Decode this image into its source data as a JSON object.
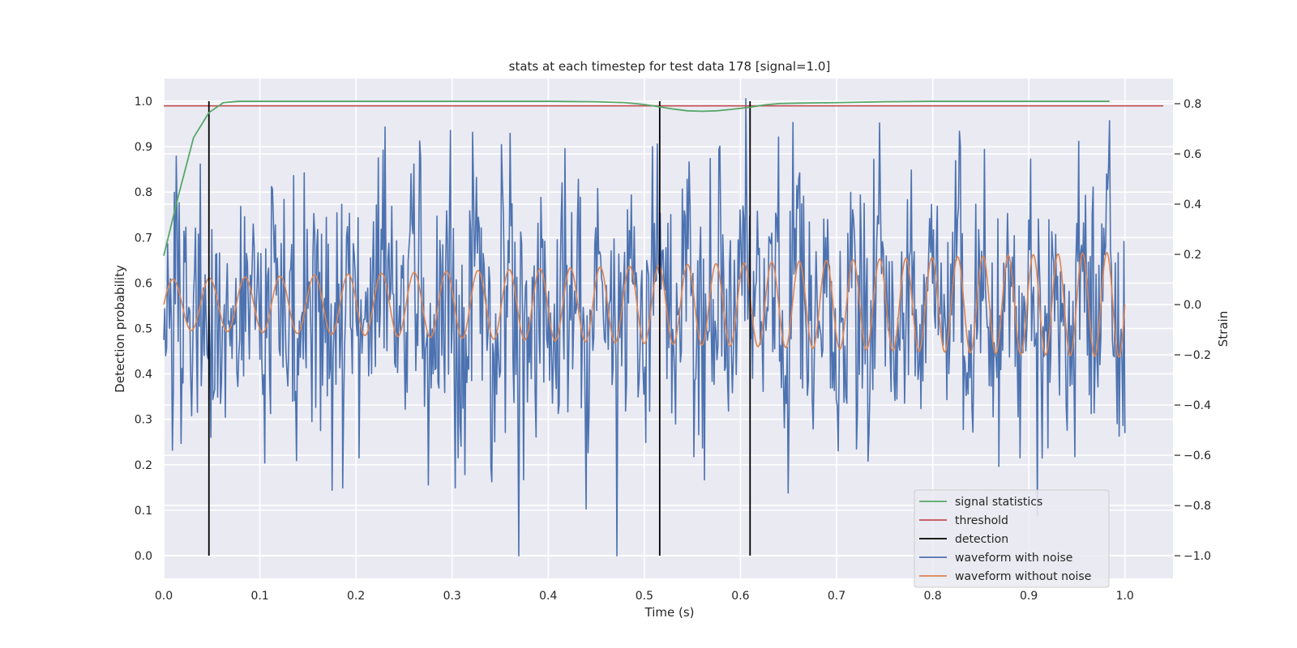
{
  "chart_data": {
    "type": "line",
    "title": "stats at each timestep for test data 178 [signal=1.0]",
    "xlabel": "Time (s)",
    "ylabel_left": "Detection probability",
    "ylabel_right": "Strain",
    "xlim": [
      0.0,
      1.05
    ],
    "ylim_left": [
      -0.05,
      1.05
    ],
    "ylim_right": [
      -1.09,
      0.9
    ],
    "x_ticks": [
      0.0,
      0.1,
      0.2,
      0.3,
      0.4,
      0.5,
      0.6,
      0.7,
      0.8,
      0.9,
      1.0
    ],
    "x_tick_labels": [
      "0.0",
      "0.1",
      "0.2",
      "0.3",
      "0.4",
      "0.5",
      "0.6",
      "0.7",
      "0.8",
      "0.9",
      "1.0"
    ],
    "y_left_ticks": [
      0.0,
      0.1,
      0.2,
      0.3,
      0.4,
      0.5,
      0.6,
      0.7,
      0.8,
      0.9,
      1.0
    ],
    "y_left_tick_labels": [
      "0.0",
      "0.1",
      "0.2",
      "0.3",
      "0.4",
      "0.5",
      "0.6",
      "0.7",
      "0.8",
      "0.9",
      "1.0"
    ],
    "y_right_ticks": [
      -1.0,
      -0.8,
      -0.6,
      -0.4,
      -0.2,
      0.0,
      0.2,
      0.4,
      0.6,
      0.8
    ],
    "y_right_tick_labels": [
      "−1.0",
      "−0.8",
      "−0.6",
      "−0.4",
      "−0.2",
      "0.0",
      "0.2",
      "0.4",
      "0.6",
      "0.8"
    ],
    "grid": true,
    "legend_position": "lower-right",
    "series": [
      {
        "name": "signal statistics",
        "axis": "left",
        "color": "#55a868",
        "x": [
          0.0,
          0.015,
          0.031,
          0.047,
          0.062,
          0.078,
          0.094,
          0.2,
          0.3,
          0.4,
          0.45,
          0.48,
          0.5,
          0.515,
          0.53,
          0.545,
          0.56,
          0.575,
          0.59,
          0.61,
          0.625,
          0.64,
          0.66,
          0.7,
          0.75,
          0.8,
          0.9,
          0.984
        ],
        "y": [
          0.66,
          0.79,
          0.92,
          0.975,
          0.997,
          1.0,
          1.0,
          1.0,
          1.0,
          1.0,
          0.999,
          0.997,
          0.993,
          0.988,
          0.983,
          0.979,
          0.978,
          0.979,
          0.982,
          0.987,
          0.992,
          0.995,
          0.996,
          0.997,
          0.999,
          1.0,
          1.0,
          1.0
        ]
      },
      {
        "name": "threshold",
        "axis": "left",
        "color": "#c44e52",
        "x": [
          0.0,
          1.04
        ],
        "y": [
          0.99,
          0.99
        ]
      },
      {
        "name": "detection",
        "axis": "left",
        "color": "#000000",
        "x": [
          0.047,
          0.516,
          0.61
        ],
        "y_range": [
          0.0,
          1.0
        ]
      },
      {
        "name": "waveform with noise",
        "axis": "right",
        "color": "#4c72b0",
        "n_points": 1000,
        "t_range": [
          0.0,
          1.0
        ],
        "amplitude_range": [
          -1.0,
          0.82
        ]
      },
      {
        "name": "waveform without noise",
        "axis": "right",
        "color": "#dd8452",
        "n_points": 1000,
        "t_range": [
          0.0,
          1.0
        ],
        "amplitude_start": 0.1,
        "amplitude_end": 0.21,
        "freq_start_hz": 26,
        "freq_end_hz": 40
      }
    ]
  }
}
